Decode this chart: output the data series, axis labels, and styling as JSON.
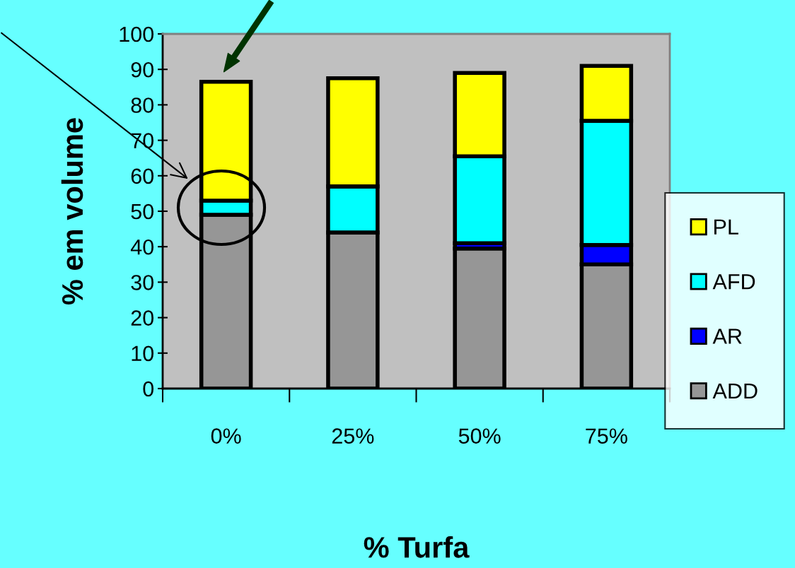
{
  "chart_data": {
    "type": "bar",
    "stacked": true,
    "xlabel": "% Turfa",
    "ylabel": "% em volume",
    "categories": [
      "0%",
      "25%",
      "50%",
      "75%"
    ],
    "series": [
      {
        "name": "ADD",
        "color": "#969696",
        "values": [
          49,
          44,
          39.5,
          35
        ]
      },
      {
        "name": "AR",
        "color": "#0000ff",
        "values": [
          null,
          null,
          1.5,
          5.5
        ]
      },
      {
        "name": "AFD",
        "color": "#00ffff",
        "values": [
          4,
          13,
          24.5,
          35
        ]
      },
      {
        "name": "PL",
        "color": "#ffff00",
        "values": [
          33.5,
          30.5,
          23.5,
          15.5
        ]
      }
    ],
    "ylim": [
      0,
      100
    ],
    "yticks": [
      0,
      10,
      20,
      30,
      40,
      50,
      60,
      70,
      80,
      90,
      100
    ],
    "grid": false,
    "legend": "right"
  }
}
